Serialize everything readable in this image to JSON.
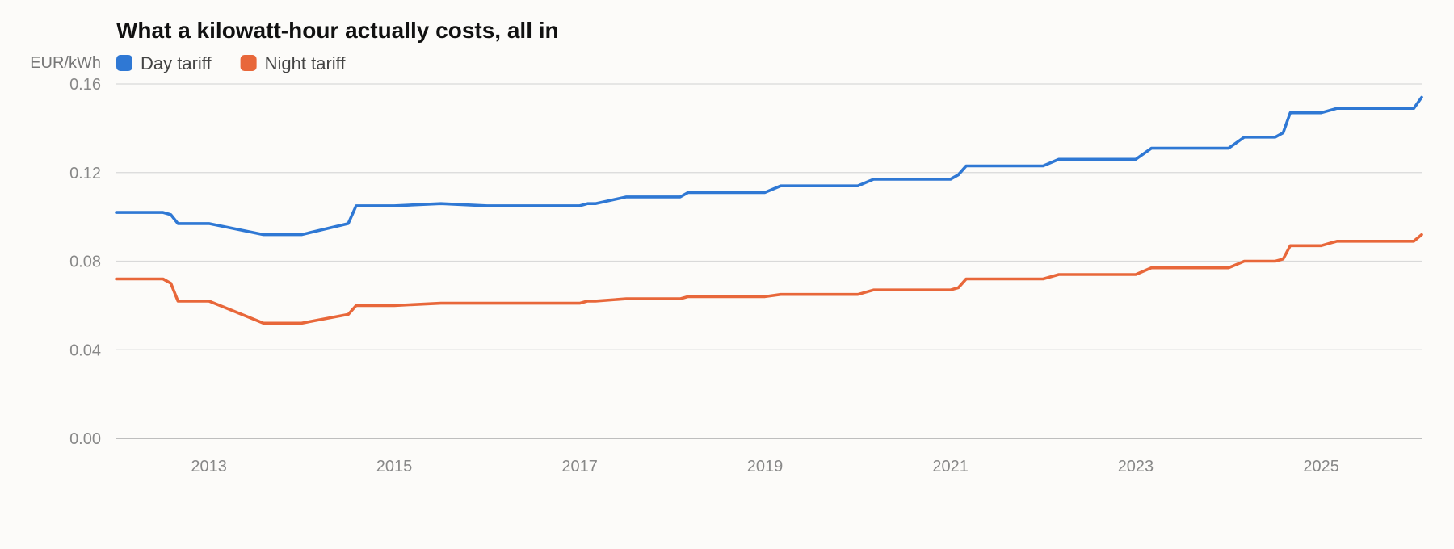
{
  "chart_data": {
    "type": "line",
    "title": "What a kilowatt-hour actually costs, all in",
    "ylabel": "EUR/kWh",
    "legend": "top-left",
    "grid": true,
    "ylim": [
      0,
      0.16
    ],
    "xlim": [
      "2012-07-01",
      "2026-08-01"
    ],
    "yticks": [
      "0.00",
      "0.04",
      "0.08",
      "0.12",
      "0.16"
    ],
    "xticks": [
      "2013",
      "2015",
      "2017",
      "2019",
      "2021",
      "2023",
      "2025"
    ],
    "x": [
      "2012-07-01",
      "2013-01-01",
      "2013-02-01",
      "2013-03-01",
      "2013-07-01",
      "2014-02-01",
      "2014-07-01",
      "2015-01-01",
      "2015-02-01",
      "2015-07-01",
      "2016-01-01",
      "2016-07-01",
      "2017-01-01",
      "2017-07-01",
      "2017-08-01",
      "2017-09-01",
      "2018-01-01",
      "2018-07-01",
      "2018-08-01",
      "2018-09-01",
      "2019-01-01",
      "2019-07-01",
      "2019-09-01",
      "2020-01-01",
      "2020-07-01",
      "2020-09-01",
      "2021-01-01",
      "2021-07-01",
      "2021-08-01",
      "2021-09-01",
      "2022-01-01",
      "2022-07-01",
      "2022-09-01",
      "2023-01-01",
      "2023-07-01",
      "2023-09-01",
      "2024-01-01",
      "2024-07-01",
      "2024-09-01",
      "2025-01-01",
      "2025-02-01",
      "2025-03-01",
      "2025-07-01",
      "2025-09-01",
      "2026-01-01",
      "2026-07-01",
      "2026-08-01"
    ],
    "series": [
      {
        "name": "Day tariff",
        "color": "#2f78d4",
        "values": [
          0.102,
          0.102,
          0.101,
          0.097,
          0.097,
          0.092,
          0.092,
          0.097,
          0.105,
          0.105,
          0.106,
          0.105,
          0.105,
          0.105,
          0.106,
          0.106,
          0.109,
          0.109,
          0.109,
          0.111,
          0.111,
          0.111,
          0.114,
          0.114,
          0.114,
          0.117,
          0.117,
          0.117,
          0.119,
          0.123,
          0.123,
          0.123,
          0.126,
          0.126,
          0.126,
          0.131,
          0.131,
          0.131,
          0.136,
          0.136,
          0.138,
          0.147,
          0.147,
          0.149,
          0.149,
          0.149,
          0.154
        ]
      },
      {
        "name": "Night tariff",
        "color": "#e8673a",
        "values": [
          0.072,
          0.072,
          0.07,
          0.062,
          0.062,
          0.052,
          0.052,
          0.056,
          0.06,
          0.06,
          0.061,
          0.061,
          0.061,
          0.061,
          0.062,
          0.062,
          0.063,
          0.063,
          0.063,
          0.064,
          0.064,
          0.064,
          0.065,
          0.065,
          0.065,
          0.067,
          0.067,
          0.067,
          0.068,
          0.072,
          0.072,
          0.072,
          0.074,
          0.074,
          0.074,
          0.077,
          0.077,
          0.077,
          0.08,
          0.08,
          0.081,
          0.087,
          0.087,
          0.089,
          0.089,
          0.089,
          0.092
        ]
      }
    ]
  }
}
